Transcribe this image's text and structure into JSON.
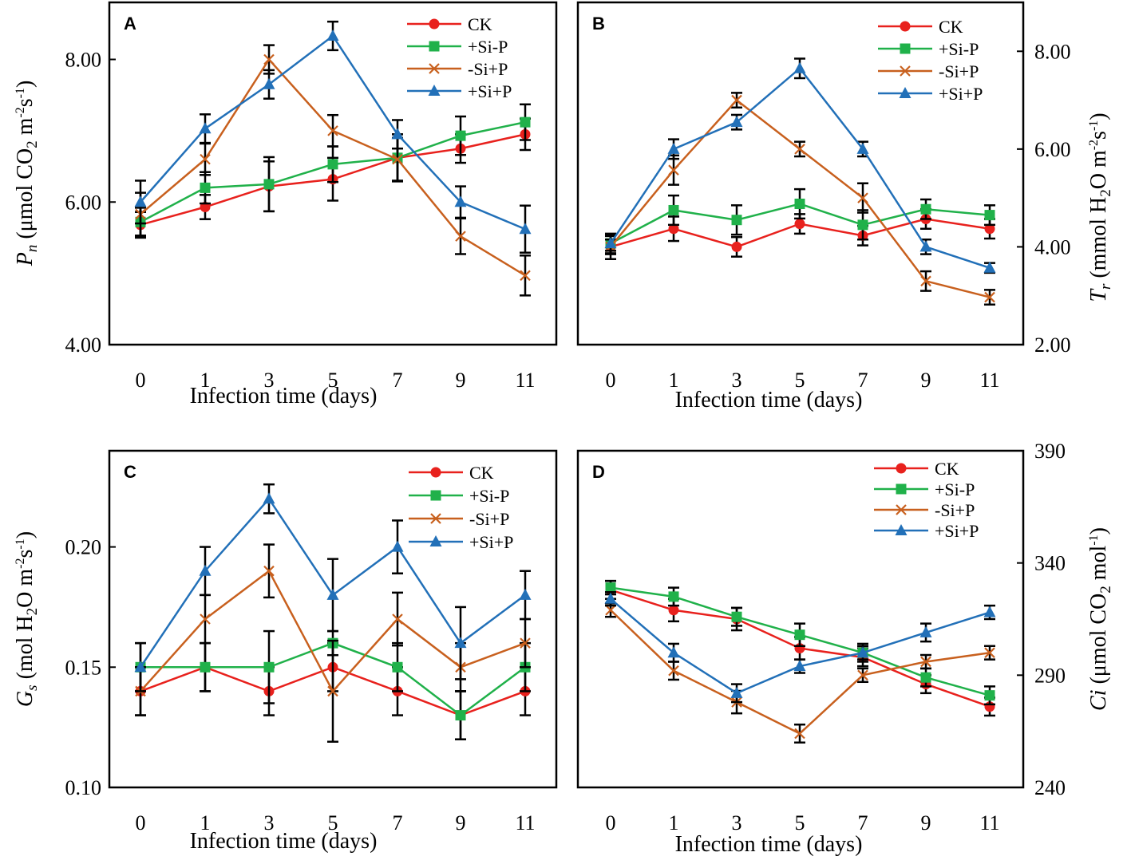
{
  "chart_data": [
    {
      "panel": "A",
      "type": "line",
      "y_axis_side": "left",
      "ylabel_parts": [
        "P",
        "n",
        " (μmol CO",
        "2",
        " m",
        "-2",
        "s",
        "-1",
        ")"
      ],
      "xlabel": "Infection time (days)",
      "categories": [
        "0",
        "1",
        "3",
        "5",
        "7",
        "9",
        "11"
      ],
      "ylim": [
        4,
        8.8
      ],
      "yticks": [
        4,
        6,
        8
      ],
      "ytick_labels": [
        "4.00",
        "6.00",
        "8.00"
      ],
      "series": [
        {
          "name": "CK",
          "values": [
            5.68,
            5.93,
            6.22,
            6.32,
            6.62,
            6.75,
            6.95
          ],
          "err": [
            0.18,
            0.17,
            0.35,
            0.3,
            0.33,
            0.2,
            0.22
          ]
        },
        {
          "name": "+Si-P",
          "values": [
            5.72,
            6.2,
            6.25,
            6.53,
            6.62,
            6.93,
            7.12
          ],
          "err": [
            0.2,
            0.22,
            0.38,
            0.25,
            0.33,
            0.27,
            0.25
          ]
        },
        {
          "name": "-Si+P",
          "values": [
            5.83,
            6.6,
            8.0,
            7.0,
            6.6,
            5.52,
            4.97
          ],
          "err": [
            0.3,
            0.22,
            0.2,
            0.22,
            0.3,
            0.25,
            0.28
          ]
        },
        {
          "name": "+Si+P",
          "values": [
            6.0,
            7.03,
            7.65,
            8.33,
            6.95,
            6.0,
            5.62
          ],
          "err": [
            0.3,
            0.2,
            0.2,
            0.2,
            0.2,
            0.22,
            0.33
          ]
        }
      ]
    },
    {
      "panel": "B",
      "type": "line",
      "y_axis_side": "right",
      "ylabel_parts": [
        "T",
        "r",
        " (mmol H",
        "2",
        "O m",
        "-2",
        "s",
        "-1",
        ")"
      ],
      "xlabel": "Infection time (days)",
      "categories": [
        "0",
        "1",
        "3",
        "5",
        "7",
        "9",
        "11"
      ],
      "ylim": [
        2,
        9
      ],
      "yticks": [
        2,
        4,
        6,
        8
      ],
      "ytick_labels": [
        "2.00",
        "4.00",
        "6.00",
        "8.00"
      ],
      "series": [
        {
          "name": "CK",
          "values": [
            4.0,
            4.37,
            4.0,
            4.47,
            4.23,
            4.57,
            4.37
          ],
          "err": [
            0.25,
            0.25,
            0.2,
            0.2,
            0.2,
            0.2,
            0.2
          ]
        },
        {
          "name": "+Si-P",
          "values": [
            4.07,
            4.75,
            4.55,
            4.88,
            4.45,
            4.77,
            4.65
          ],
          "err": [
            0.2,
            0.3,
            0.3,
            0.3,
            0.3,
            0.2,
            0.2
          ]
        },
        {
          "name": "-Si+P",
          "values": [
            4.0,
            5.57,
            7.0,
            6.0,
            5.0,
            3.3,
            2.97
          ],
          "err": [
            0.15,
            0.3,
            0.15,
            0.15,
            0.3,
            0.2,
            0.15
          ]
        },
        {
          "name": "+Si+P",
          "values": [
            4.07,
            6.0,
            6.55,
            7.65,
            6.0,
            4.0,
            3.57
          ],
          "err": [
            0.15,
            0.2,
            0.15,
            0.2,
            0.15,
            0.15,
            0.1
          ]
        }
      ]
    },
    {
      "panel": "C",
      "type": "line",
      "y_axis_side": "left",
      "ylabel_parts": [
        "G",
        "s",
        " (mol H",
        "2",
        "O m",
        "-2",
        "s",
        "-1",
        ")"
      ],
      "xlabel": "Infection time (days)",
      "categories": [
        "0",
        "1",
        "3",
        "5",
        "7",
        "9",
        "11"
      ],
      "ylim": [
        0.1,
        0.24
      ],
      "yticks": [
        0.1,
        0.15,
        0.2
      ],
      "ytick_labels": [
        "0.10",
        "0.15",
        "0.20"
      ],
      "series": [
        {
          "name": "CK",
          "values": [
            0.14,
            0.15,
            0.14,
            0.15,
            0.14,
            0.13,
            0.14
          ],
          "err": [
            0.01,
            0.01,
            0.01,
            0.01,
            0.01,
            0.01,
            0.01
          ]
        },
        {
          "name": "+Si-P",
          "values": [
            0.15,
            0.15,
            0.15,
            0.16,
            0.15,
            0.13,
            0.15
          ],
          "err": [
            0.01,
            0.01,
            0.015,
            0.005,
            0.01,
            0.01,
            0.01
          ]
        },
        {
          "name": "-Si+P",
          "values": [
            0.14,
            0.17,
            0.19,
            0.14,
            0.17,
            0.15,
            0.16
          ],
          "err": [
            0.01,
            0.01,
            0.011,
            0.021,
            0.011,
            0.01,
            0.01
          ]
        },
        {
          "name": "+Si+P",
          "values": [
            0.15,
            0.19,
            0.22,
            0.18,
            0.2,
            0.16,
            0.18
          ],
          "err": [
            0.01,
            0.01,
            0.006,
            0.015,
            0.011,
            0.015,
            0.01
          ]
        }
      ]
    },
    {
      "panel": "D",
      "type": "line",
      "y_axis_side": "right",
      "ylabel_parts": [
        "Ci",
        "",
        " (μmol CO",
        "2",
        " mol",
        "-1",
        "",
        "",
        ")"
      ],
      "xlabel": "Infection time (days)",
      "categories": [
        "0",
        "1",
        "3",
        "5",
        "7",
        "9",
        "11"
      ],
      "ylim": [
        240,
        390
      ],
      "yticks": [
        240,
        290,
        340,
        390
      ],
      "ytick_labels": [
        "240",
        "290",
        "340",
        "390"
      ],
      "series": [
        {
          "name": "CK",
          "values": [
            328,
            319,
            315,
            302,
            298,
            286,
            276
          ],
          "err": [
            4,
            5,
            5,
            5,
            4,
            4,
            4
          ]
        },
        {
          "name": "+Si-P",
          "values": [
            329,
            325,
            316,
            308,
            300,
            289,
            281
          ],
          "err": [
            3,
            4,
            4,
            5,
            4,
            4,
            4
          ]
        },
        {
          "name": "-Si+P",
          "values": [
            319,
            292,
            278,
            264,
            290,
            296,
            300
          ],
          "err": [
            3,
            4,
            5,
            4,
            3,
            3,
            3
          ]
        },
        {
          "name": "+Si+P",
          "values": [
            324,
            300,
            282,
            294,
            300,
            309,
            318
          ],
          "err": [
            3,
            4,
            4,
            3,
            3,
            4,
            3
          ]
        }
      ]
    }
  ],
  "legend_labels": [
    "CK",
    "+Si-P",
    "-Si+P",
    "+Si+P"
  ],
  "series_colors": {
    "CK": "#e8211d",
    "+Si-P": "#20b14a",
    "-Si+P": "#c8601e",
    "+Si+P": "#2270b8"
  },
  "series_markers": {
    "CK": "circle",
    "+Si-P": "square",
    "-Si+P": "cross",
    "+Si+P": "triangle"
  }
}
